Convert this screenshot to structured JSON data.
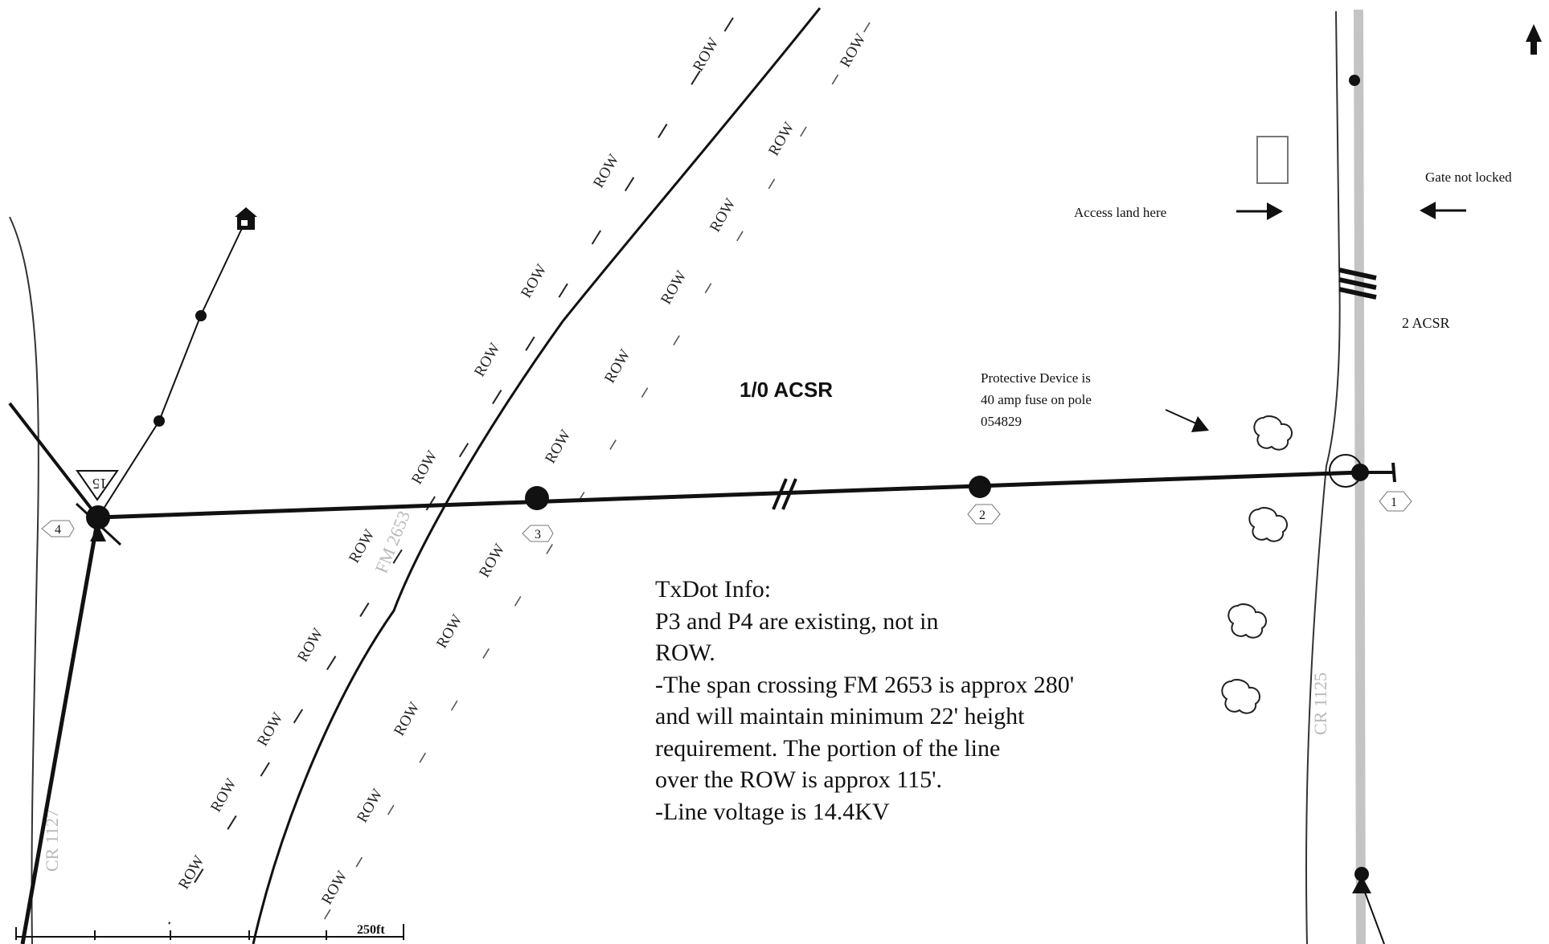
{
  "map": {
    "conductor_main_label": "1/0 ACSR",
    "conductor_branch_label": "2 ACSR",
    "protective_note": [
      "Protective Device is",
      "40 amp fuse on pole",
      "054829"
    ],
    "access_label": "Access land here",
    "gate_label": "Gate not locked",
    "scale_label": "250ft",
    "row_label": "ROW",
    "roads": {
      "fm_road": "FM 2653",
      "cr_right": "CR 1125",
      "cr_left": "CR 1127"
    },
    "poles": [
      {
        "id": "1",
        "label": "1"
      },
      {
        "id": "2",
        "label": "2"
      },
      {
        "id": "3",
        "label": "3"
      },
      {
        "id": "4",
        "label": "4"
      }
    ],
    "transformer_label": "15",
    "north_arrow": "north-arrow-icon",
    "house_icon": "house-icon",
    "tree_icon": "tree-icon"
  },
  "info": {
    "lines": [
      "TxDot Info:",
      "P3 and P4 are existing, not in",
      "ROW.",
      "-The span crossing FM 2653 is approx 280'",
      "and will maintain minimum 22' height",
      "requirement. The portion of the line",
      "over the ROW is approx 115'.",
      "-Line voltage is 14.4KV"
    ]
  }
}
